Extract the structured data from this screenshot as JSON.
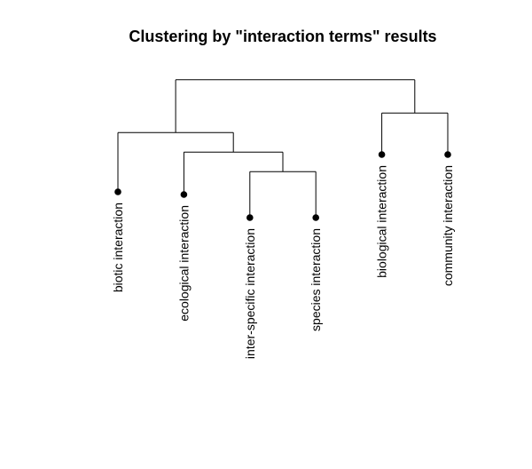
{
  "chart_data": {
    "type": "dendrogram",
    "title": "Clustering by \"interaction terms\" results",
    "leaves": [
      "biotic interaction",
      "ecological interaction",
      "inter-specific interaction",
      "species interaction",
      "biological interaction",
      "community interaction"
    ],
    "nodes": [
      {
        "members": [
          "inter-specific interaction",
          "species interaction"
        ],
        "height": 0.44
      },
      {
        "members": [
          "ecological interaction",
          "inter-specific interaction",
          "species interaction"
        ],
        "height": 0.54
      },
      {
        "members": [
          "biotic interaction",
          "ecological interaction",
          "inter-specific interaction",
          "species interaction"
        ],
        "height": 0.64
      },
      {
        "members": [
          "biological interaction",
          "community interaction"
        ],
        "height": 0.74
      },
      {
        "members": [
          "biotic interaction",
          "ecological interaction",
          "inter-specific interaction",
          "species interaction",
          "biological interaction",
          "community interaction"
        ],
        "height": 0.91
      }
    ]
  }
}
